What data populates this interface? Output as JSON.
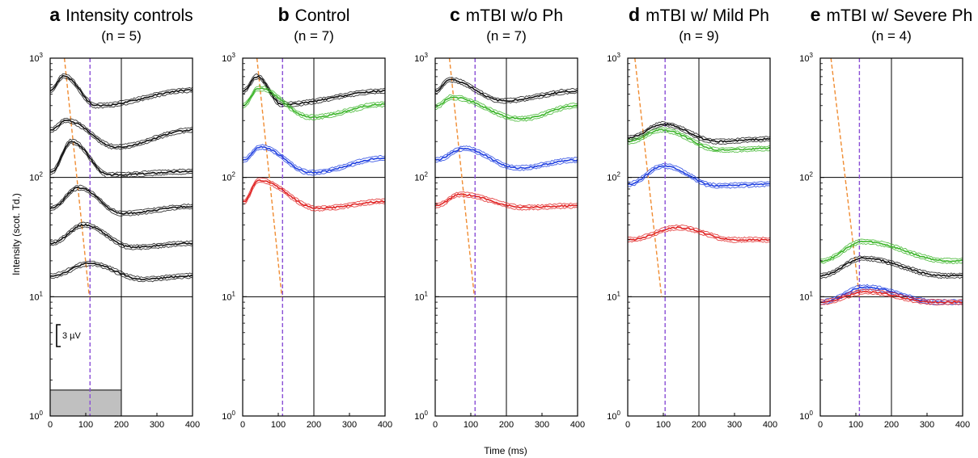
{
  "figure": {
    "ylabel": "Intensity (scot. Td.)",
    "xlabel": "Time (ms)",
    "x_ticks": [
      "0",
      "100",
      "200",
      "300",
      "400"
    ],
    "y_ticks": [
      {
        "base": "10",
        "exp": "0",
        "value": 1
      },
      {
        "base": "10",
        "exp": "1",
        "value": 10
      },
      {
        "base": "10",
        "exp": "2",
        "value": 100
      },
      {
        "base": "10",
        "exp": "3",
        "value": 1000
      }
    ],
    "scale_bar_label": "3 µV"
  },
  "colors": {
    "black": "#111111",
    "green": "#3cb52a",
    "blue": "#1f3fe0",
    "red": "#e02424",
    "orange_dashed": "#f08c32",
    "purple_dashed": "#8a4fd6",
    "stimulus_box": "#c0c0c0"
  },
  "chart_data": [
    {
      "type": "line",
      "panel": "a",
      "title": "Intensity controls",
      "subtitle": "(n = 5)",
      "xlim": [
        0,
        400
      ],
      "ylim": [
        1,
        1000
      ],
      "yscale": "log",
      "grid_x": [
        200
      ],
      "grid_y": [
        10,
        100
      ],
      "stimulus_bar": {
        "x": [
          0,
          200
        ],
        "y": [
          1,
          1.65
        ]
      },
      "orange_line": {
        "x": [
          40,
          110
        ],
        "y": [
          1000,
          10
        ]
      },
      "purple_line_x": 112,
      "series": [
        {
          "color": "black",
          "baseline": 540,
          "peak": 710,
          "peak_t": 38,
          "trough": 400,
          "trough_t": 130,
          "end": 540
        },
        {
          "color": "black",
          "baseline": 250,
          "peak": 300,
          "peak_t": 45,
          "trough": 180,
          "trough_t": 185,
          "end": 250
        },
        {
          "color": "black",
          "baseline": 110,
          "peak": 200,
          "peak_t": 60,
          "trough": 105,
          "trough_t": 165,
          "end": 112
        },
        {
          "color": "black",
          "baseline": 55,
          "peak": 82,
          "peak_t": 80,
          "trough": 50,
          "trough_t": 200,
          "end": 57
        },
        {
          "color": "black",
          "baseline": 28,
          "peak": 40,
          "peak_t": 95,
          "trough": 26,
          "trough_t": 230,
          "end": 28
        },
        {
          "color": "black",
          "baseline": 15,
          "peak": 19,
          "peak_t": 110,
          "trough": 14,
          "trough_t": 260,
          "end": 15
        }
      ]
    },
    {
      "type": "line",
      "panel": "b",
      "title": "Control",
      "subtitle": "(n = 7)",
      "xlim": [
        0,
        400
      ],
      "ylim": [
        1,
        1000
      ],
      "yscale": "log",
      "grid_x": [
        200
      ],
      "grid_y": [
        10,
        100
      ],
      "orange_line": {
        "x": [
          40,
          110
        ],
        "y": [
          1000,
          10
        ]
      },
      "purple_line_x": 112,
      "series": [
        {
          "color": "black",
          "baseline": 530,
          "peak": 700,
          "peak_t": 40,
          "trough": 410,
          "trough_t": 110,
          "end": 530
        },
        {
          "color": "green",
          "baseline": 400,
          "peak": 560,
          "peak_t": 45,
          "trough": 320,
          "trough_t": 190,
          "end": 410
        },
        {
          "color": "blue",
          "baseline": 140,
          "peak": 180,
          "peak_t": 50,
          "trough": 110,
          "trough_t": 190,
          "end": 145
        },
        {
          "color": "red",
          "baseline": 62,
          "peak": 95,
          "peak_t": 45,
          "trough": 55,
          "trough_t": 210,
          "end": 63
        }
      ]
    },
    {
      "type": "line",
      "panel": "c",
      "title": "mTBI w/o Ph",
      "subtitle": "(n = 7)",
      "xlim": [
        0,
        400
      ],
      "ylim": [
        1,
        1000
      ],
      "yscale": "log",
      "grid_x": [
        200
      ],
      "grid_y": [
        10,
        100
      ],
      "orange_line": {
        "x": [
          40,
          110
        ],
        "y": [
          1000,
          10
        ]
      },
      "purple_line_x": 112,
      "series": [
        {
          "color": "black",
          "baseline": 530,
          "peak": 660,
          "peak_t": 40,
          "trough": 440,
          "trough_t": 190,
          "end": 530
        },
        {
          "color": "green",
          "baseline": 390,
          "peak": 470,
          "peak_t": 45,
          "trough": 310,
          "trough_t": 240,
          "end": 400
        },
        {
          "color": "blue",
          "baseline": 140,
          "peak": 175,
          "peak_t": 80,
          "trough": 120,
          "trough_t": 230,
          "end": 140
        },
        {
          "color": "red",
          "baseline": 58,
          "peak": 72,
          "peak_t": 70,
          "trough": 56,
          "trough_t": 250,
          "end": 58
        }
      ]
    },
    {
      "type": "line",
      "panel": "d",
      "title": "mTBI w/ Mild Ph",
      "subtitle": "(n = 9)",
      "xlim": [
        0,
        400
      ],
      "ylim": [
        1,
        1000
      ],
      "yscale": "log",
      "grid_x": [
        200
      ],
      "grid_y": [
        10,
        100
      ],
      "orange_line": {
        "x": [
          20,
          95
        ],
        "y": [
          1000,
          10
        ]
      },
      "purple_line_x": 105,
      "series": [
        {
          "color": "black",
          "baseline": 215,
          "peak": 280,
          "peak_t": 100,
          "trough": 200,
          "trough_t": 250,
          "end": 210
        },
        {
          "color": "green",
          "baseline": 200,
          "peak": 250,
          "peak_t": 95,
          "trough": 170,
          "trough_t": 260,
          "end": 175
        },
        {
          "color": "blue",
          "baseline": 88,
          "peak": 125,
          "peak_t": 100,
          "trough": 85,
          "trough_t": 250,
          "end": 88
        },
        {
          "color": "red",
          "baseline": 30,
          "peak": 38,
          "peak_t": 140,
          "trough": 30,
          "trough_t": 300,
          "end": 30
        }
      ]
    },
    {
      "type": "line",
      "panel": "e",
      "title": "mTBI w/ Severe Ph",
      "subtitle": "(n = 4)",
      "xlim": [
        0,
        400
      ],
      "ylim": [
        1,
        1000
      ],
      "yscale": "log",
      "grid_x": [
        200
      ],
      "grid_y": [
        10,
        100
      ],
      "orange_line": {
        "x": [
          30,
          110
        ],
        "y": [
          1000,
          10
        ]
      },
      "purple_line_x": 110,
      "series": [
        {
          "color": "green",
          "baseline": 20,
          "peak": 29,
          "peak_t": 120,
          "trough": 20,
          "trough_t": 360,
          "end": 20
        },
        {
          "color": "black",
          "baseline": 15,
          "peak": 21,
          "peak_t": 120,
          "trough": 15,
          "trough_t": 350,
          "end": 15
        },
        {
          "color": "blue",
          "baseline": 9,
          "peak": 12,
          "peak_t": 125,
          "trough": 9,
          "trough_t": 330,
          "end": 9
        },
        {
          "color": "red",
          "baseline": 9,
          "peak": 11,
          "peak_t": 130,
          "trough": 9,
          "trough_t": 320,
          "end": 9
        }
      ]
    }
  ]
}
